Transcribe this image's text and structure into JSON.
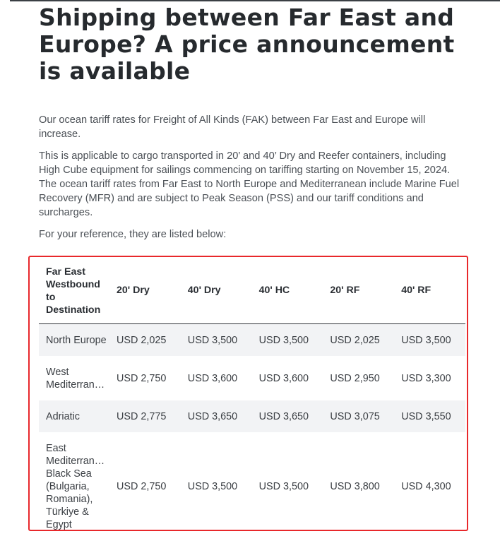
{
  "article": {
    "headline": "Shipping between Far East and Europe? A price announcement is available",
    "paragraphs": [
      "Our ocean tariff rates for Freight of All Kinds (FAK) between Far East and Europe will increase.",
      "This is applicable to cargo transported in 20’ and 40’ Dry and Reefer containers, including High Cube equipment for sailings commencing on tariffing starting on November 15, 2024. The ocean tariff rates from Far East to North Europe and Mediterranean include Marine Fuel Recovery (MFR) and are subject to Peak Season (PSS) and our tariff conditions and surcharges.",
      "For your reference, they are listed below:"
    ]
  },
  "table": {
    "headers": {
      "destination": "Far East Westbound to Destination",
      "c20dry": "20' Dry",
      "c40dry": "40' Dry",
      "c40hc": "40' HC",
      "c20rf": "20' RF",
      "c40rf": "40' RF"
    },
    "rows": [
      {
        "destination": "North Europe",
        "c20dry": "USD 2,025",
        "c40dry": "USD 3,500",
        "c40hc": "USD 3,500",
        "c20rf": "USD 2,025",
        "c40rf": "USD 3,500"
      },
      {
        "destination_line1": "West",
        "destination_line2": "Mediterranean",
        "c20dry": "USD 2,750",
        "c40dry": "USD 3,600",
        "c40hc": "USD 3,600",
        "c20rf": "USD 2,950",
        "c40rf": "USD 3,300"
      },
      {
        "destination": "Adriatic",
        "c20dry": "USD 2,775",
        "c40dry": "USD 3,650",
        "c40hc": "USD 3,650",
        "c20rf": "USD 3,075",
        "c40rf": "USD 3,550"
      },
      {
        "destination_line1": "East",
        "destination_line2": "Mediterranean",
        "destination_rest": "Black Sea (Bulgaria, Romania), Türkiye & Egypt",
        "c20dry": "USD 2,750",
        "c40dry": "USD 3,500",
        "c40hc": "USD 3,500",
        "c20rf": "USD 3,800",
        "c40rf": "USD 4,300"
      }
    ]
  },
  "colors": {
    "highlight_border": "#e8282b",
    "row_shade": "#f2f3f5",
    "heading_text": "#262a2e",
    "body_text": "#4a4f55"
  }
}
